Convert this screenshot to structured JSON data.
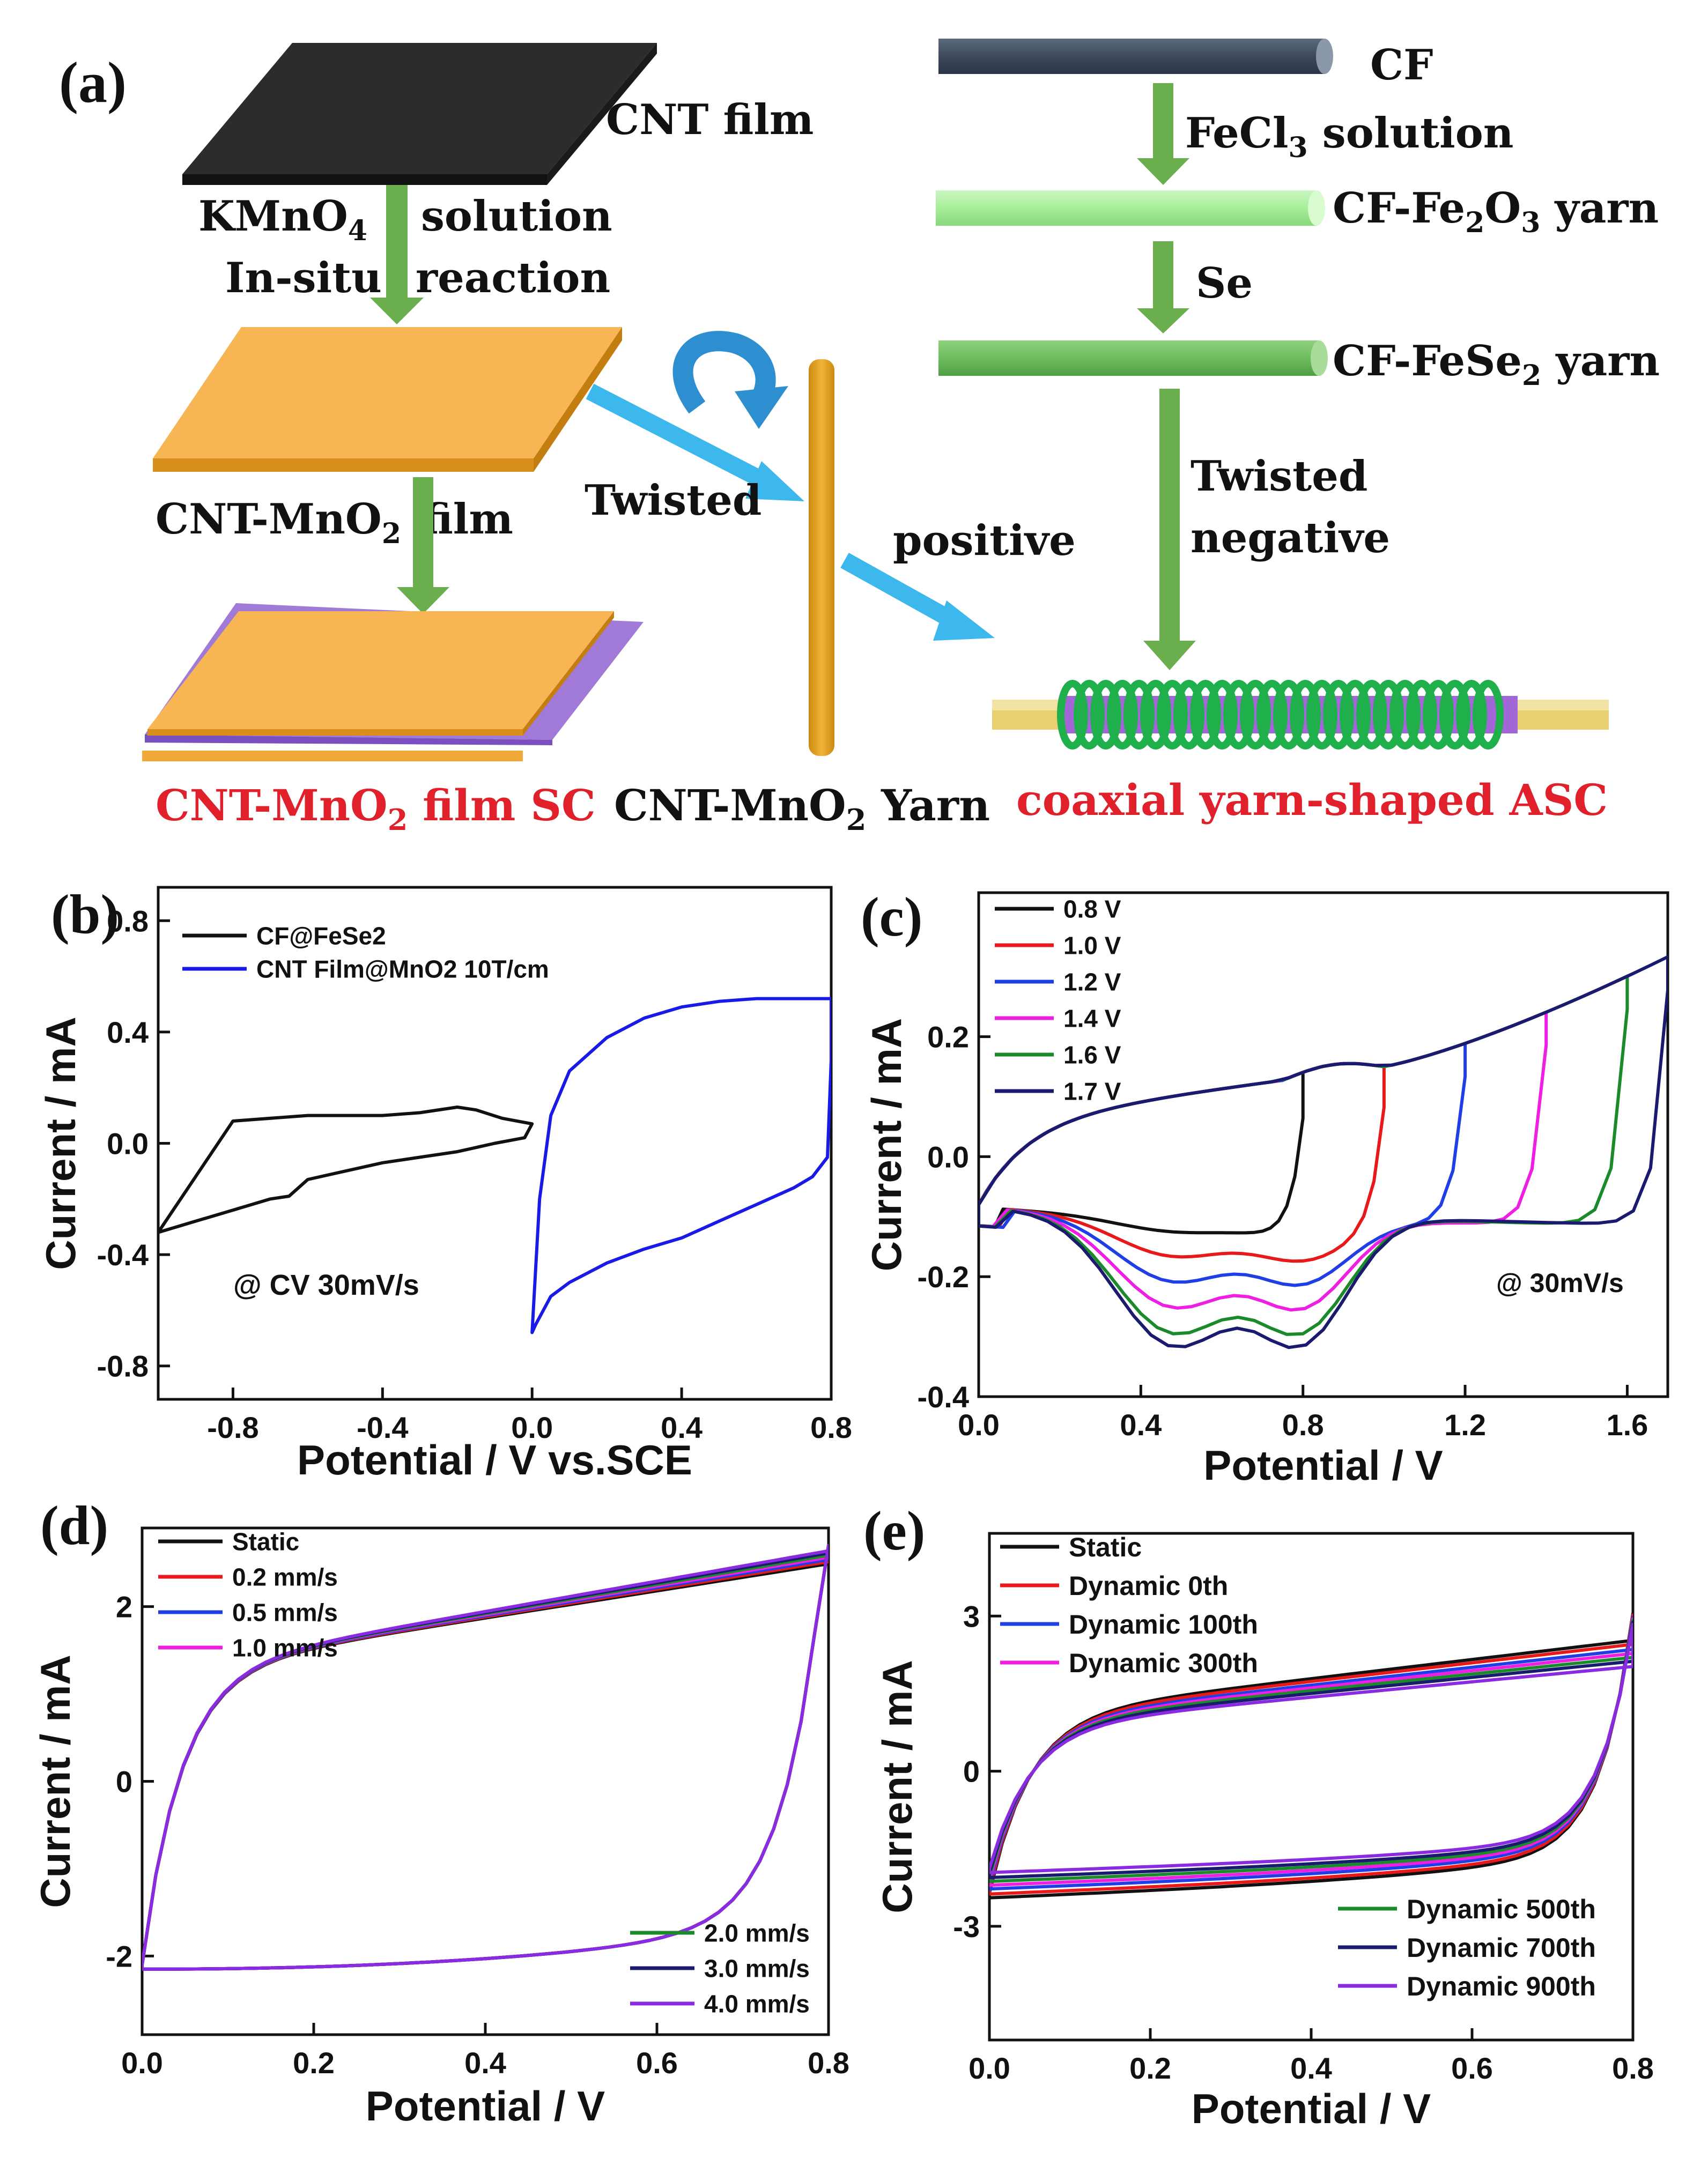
{
  "schematic": {
    "panel_label": "(a)",
    "cnt_film": "CNT film",
    "kmno4_pre": "KMnO",
    "kmno4_sub": "4",
    "solution": "solution",
    "in_situ": "In-situ",
    "reaction": "reaction",
    "cnt_mno2_film_pre": "CNT-MnO",
    "cnt_mno2_film_sub": "2",
    "cnt_mno2_film_post": "film",
    "twisted_left": "Twisted",
    "positive": "positive",
    "cf": "CF",
    "fecl3_pre": "FeCl",
    "fecl3_sub": "3",
    "fecl3_post": " solution",
    "fe2o3_a": "CF-Fe",
    "fe2o3_s1": "2",
    "fe2o3_b": "O",
    "fe2o3_s2": "3",
    "fe2o3_c": " yarn",
    "se": "Se",
    "fese2_a": "CF-FeSe",
    "fese2_s": "2",
    "fese2_b": " yarn",
    "twisted_right": "Twisted",
    "negative": "negative",
    "bottom_left_a": "CNT-MnO",
    "bottom_left_s": "2",
    "bottom_left_b": " film SC",
    "bottom_mid_a": "CNT-MnO",
    "bottom_mid_s": "2",
    "bottom_mid_b": " Yarn",
    "bottom_right": "coaxial yarn-shaped ASC",
    "colors": {
      "arrow_green": "#6aae4e",
      "arrow_blue": "#3db8ec",
      "film_orange": "#f7b554",
      "film_dark": "#2c2c2c",
      "red_text": "#e0202a"
    }
  },
  "chart_data": [
    {
      "id": "b",
      "panel_label": "(b)",
      "type": "line",
      "xlabel": "Potential / V vs.SCE",
      "ylabel": "Current / mA",
      "xlim": [
        -1.0,
        0.8
      ],
      "ylim": [
        -0.92,
        0.92
      ],
      "xticks": [
        -0.8,
        -0.4,
        0.0,
        0.4,
        0.8
      ],
      "xtick_labels": [
        "-0.8",
        "-0.4",
        "0.0",
        "0.4",
        "0.8"
      ],
      "yticks": [
        -0.8,
        -0.4,
        0.0,
        0.4,
        0.8
      ],
      "ytick_labels": [
        "-0.8",
        "-0.4",
        "0.0",
        "0.4",
        "0.8"
      ],
      "annotation": "@ CV 30mV/s",
      "legend": "top-left",
      "series": [
        {
          "name": "CF@FeSe2",
          "color": "#111111",
          "x": [
            -1.0,
            -0.9,
            -0.8,
            -0.6,
            -0.4,
            -0.3,
            -0.2,
            -0.15,
            -0.08,
            0.0,
            -0.02,
            -0.1,
            -0.2,
            -0.4,
            -0.6,
            -0.65,
            -0.7,
            -0.8,
            -0.9,
            -1.0
          ],
          "y": [
            -0.32,
            -0.12,
            0.08,
            0.1,
            0.1,
            0.11,
            0.13,
            0.12,
            0.09,
            0.07,
            0.02,
            0.0,
            -0.03,
            -0.07,
            -0.13,
            -0.19,
            -0.2,
            -0.24,
            -0.28,
            -0.32
          ]
        },
        {
          "name": "CNT Film@MnO2  10T/cm",
          "color": "#1a1ae6",
          "x": [
            0.0,
            0.02,
            0.05,
            0.1,
            0.2,
            0.3,
            0.4,
            0.5,
            0.6,
            0.7,
            0.78,
            0.8,
            0.8,
            0.79,
            0.75,
            0.7,
            0.6,
            0.5,
            0.4,
            0.3,
            0.2,
            0.1,
            0.05,
            0.01,
            0.0
          ],
          "y": [
            -0.68,
            -0.2,
            0.1,
            0.26,
            0.38,
            0.45,
            0.49,
            0.51,
            0.52,
            0.52,
            0.52,
            0.52,
            0.3,
            -0.05,
            -0.12,
            -0.16,
            -0.22,
            -0.28,
            -0.34,
            -0.38,
            -0.43,
            -0.5,
            -0.55,
            -0.65,
            -0.68
          ]
        }
      ]
    },
    {
      "id": "c",
      "panel_label": "(c)",
      "type": "line",
      "xlabel": "Potential / V",
      "ylabel": "Current / mA",
      "xlim": [
        0.0,
        1.7
      ],
      "ylim": [
        -0.4,
        0.44
      ],
      "xticks": [
        0.0,
        0.4,
        0.8,
        1.2,
        1.6
      ],
      "xtick_labels": [
        "0.0",
        "0.4",
        "0.8",
        "1.2",
        "1.6"
      ],
      "yticks": [
        -0.4,
        -0.2,
        0.0,
        0.2
      ],
      "ytick_labels": [
        "-0.4",
        "-0.2",
        "0.0",
        "0.2"
      ],
      "annotation": "@ 30mV/s",
      "legend": "top-left",
      "series": [
        {
          "name": "0.8 V",
          "color": "#111111",
          "vmax": 0.8
        },
        {
          "name": "1.0 V",
          "color": "#e8191b",
          "vmax": 1.0
        },
        {
          "name": "1.2 V",
          "color": "#1f3ee6",
          "vmax": 1.2
        },
        {
          "name": "1.4 V",
          "color": "#ee1ee3",
          "vmax": 1.4
        },
        {
          "name": "1.6 V",
          "color": "#1a8a2a",
          "vmax": 1.6
        },
        {
          "name": "1.7 V",
          "color": "#1a1a6e",
          "vmax": 1.7
        }
      ]
    },
    {
      "id": "d",
      "panel_label": "(d)",
      "type": "line",
      "xlabel": "Potential / V",
      "ylabel": "Current / mA",
      "xlim": [
        0.0,
        0.8
      ],
      "ylim": [
        -2.9,
        2.9
      ],
      "xticks": [
        0.0,
        0.2,
        0.4,
        0.6,
        0.8
      ],
      "xtick_labels": [
        "0.0",
        "0.2",
        "0.4",
        "0.6",
        "0.8"
      ],
      "yticks": [
        -2,
        0,
        2
      ],
      "ytick_labels": [
        "-2",
        "0",
        "2"
      ],
      "legend": "top-left and bottom-right",
      "series": [
        {
          "name": "Static",
          "color": "#111111"
        },
        {
          "name": "0.2 mm/s",
          "color": "#e8191b"
        },
        {
          "name": "0.5 mm/s",
          "color": "#1f3ee6"
        },
        {
          "name": "1.0 mm/s",
          "color": "#ee1ee3"
        },
        {
          "name": "2.0 mm/s",
          "color": "#1a8a2a"
        },
        {
          "name": "3.0 mm/s",
          "color": "#1a1a6e"
        },
        {
          "name": "4.0 mm/s",
          "color": "#8a2be2"
        }
      ]
    },
    {
      "id": "e",
      "panel_label": "(e)",
      "type": "line",
      "xlabel": "Potential / V",
      "ylabel": "Current / mA",
      "xlim": [
        0.0,
        0.8
      ],
      "ylim": [
        -5.2,
        4.6
      ],
      "xticks": [
        0.0,
        0.2,
        0.4,
        0.6,
        0.8
      ],
      "xtick_labels": [
        "0.0",
        "0.2",
        "0.4",
        "0.6",
        "0.8"
      ],
      "yticks": [
        -3,
        0,
        3
      ],
      "ytick_labels": [
        "-3",
        "0",
        "3"
      ],
      "legend": "top-left and bottom-right",
      "series": [
        {
          "name": "Static",
          "color": "#111111",
          "scale": 1.0
        },
        {
          "name": "Dynamic 0th",
          "color": "#e8191b",
          "scale": 0.97
        },
        {
          "name": "Dynamic 100th",
          "color": "#1f3ee6",
          "scale": 0.93
        },
        {
          "name": "Dynamic 300th",
          "color": "#ee1ee3",
          "scale": 0.9
        },
        {
          "name": "Dynamic 500th",
          "color": "#1a8a2a",
          "scale": 0.87
        },
        {
          "name": "Dynamic 700th",
          "color": "#1a1a6e",
          "scale": 0.84
        },
        {
          "name": "Dynamic 900th",
          "color": "#8a2be2",
          "scale": 0.8
        }
      ]
    }
  ]
}
